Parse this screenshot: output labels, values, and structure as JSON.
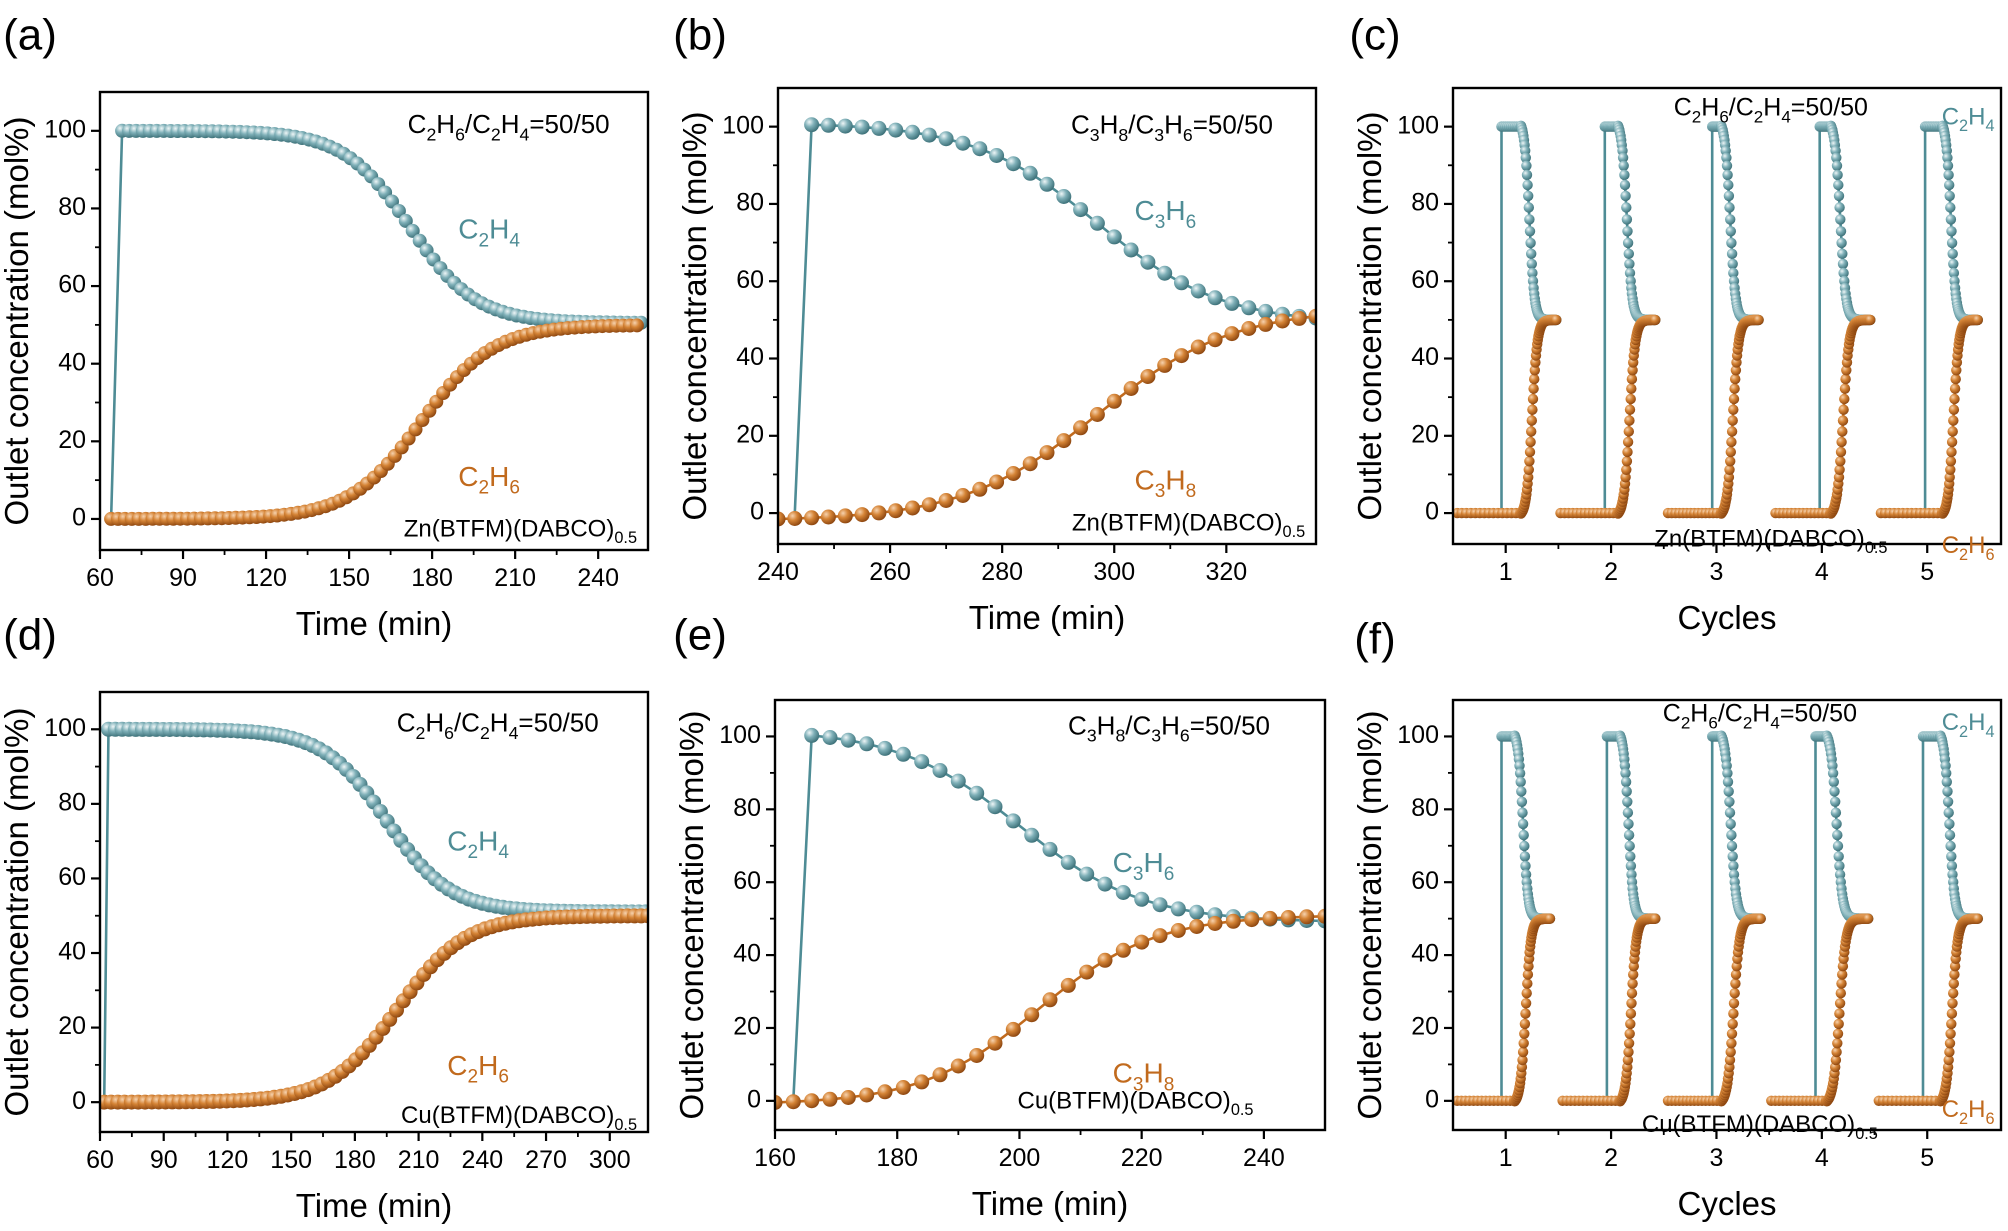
{
  "colors": {
    "c2h4": "#4e8c95",
    "c2h6": "#c16a1d",
    "axis": "#000000"
  },
  "panels": [
    {
      "id": "a",
      "label": "(a)",
      "ylabel": "Outlet concentration (mol%)",
      "xlabel": "Time (min)",
      "xticks": [
        60,
        90,
        120,
        150,
        180,
        210,
        240
      ],
      "yticks": [
        0,
        20,
        40,
        60,
        80,
        100
      ],
      "feed": "C2H6/C2H4=50/50",
      "sample": "Zn(BTFM)(DABCO)0.5",
      "series_labels": {
        "top": "C2H4",
        "bottom": "C2H6"
      }
    },
    {
      "id": "b",
      "label": "(b)",
      "ylabel": "Outlet concentration (mol%)",
      "xlabel": "Time (min)",
      "xticks": [
        240,
        260,
        280,
        300,
        320
      ],
      "yticks": [
        0,
        20,
        40,
        60,
        80,
        100
      ],
      "feed": "C3H8/C3H6=50/50",
      "sample": "Zn(BTFM)(DABCO)0.5",
      "series_labels": {
        "top": "C3H6",
        "bottom": "C3H8"
      }
    },
    {
      "id": "c",
      "label": "(c)",
      "ylabel": "Outlet concentration (mol%)",
      "xlabel": "Cycles",
      "xticks": [
        1,
        2,
        3,
        4,
        5
      ],
      "yticks": [
        0,
        20,
        40,
        60,
        80,
        100
      ],
      "feed": "C2H6/C2H4=50/50",
      "sample": "Zn(BTFM)(DABCO)0.5",
      "series_labels": {
        "top": "C2H4",
        "bottom": "C2H6"
      }
    },
    {
      "id": "d",
      "label": "(d)",
      "ylabel": "Outlet concentration (mol%)",
      "xlabel": "Time (min)",
      "xticks": [
        60,
        90,
        120,
        150,
        180,
        210,
        240,
        270,
        300
      ],
      "yticks": [
        0,
        20,
        40,
        60,
        80,
        100
      ],
      "feed": "C2H6/C2H4=50/50",
      "sample": "Cu(BTFM)(DABCO)0.5",
      "series_labels": {
        "top": "C2H4",
        "bottom": "C2H6"
      }
    },
    {
      "id": "e",
      "label": "(e)",
      "ylabel": "Outlet concentration (mol%)",
      "xlabel": "Time (min)",
      "xticks": [
        160,
        180,
        200,
        220,
        240
      ],
      "yticks": [
        0,
        20,
        40,
        60,
        80,
        100
      ],
      "feed": "C3H8/C3H6=50/50",
      "sample": "Cu(BTFM)(DABCO)0.5",
      "series_labels": {
        "top": "C3H6",
        "bottom": "C3H8"
      }
    },
    {
      "id": "f",
      "label": "(f)",
      "ylabel": "Outlet concentration (mol%)",
      "xlabel": "Cycles",
      "xticks": [
        1,
        2,
        3,
        4,
        5
      ],
      "yticks": [
        0,
        20,
        40,
        60,
        80,
        100
      ],
      "feed": "C2H6/C2H4=50/50",
      "sample": "Cu(BTFM)(DABCO)0.5",
      "series_labels": {
        "top": "C2H4",
        "bottom": "C2H6"
      }
    }
  ],
  "chart_data": [
    {
      "panel": "a",
      "type": "line",
      "marker": "sphere",
      "xlim": [
        60,
        258
      ],
      "ylim": [
        -8,
        110
      ],
      "series": [
        {
          "name": "C2H4",
          "sigmoid": {
            "x_start": 64,
            "x_rise": 68,
            "x_mid": 172,
            "width": 12,
            "high": 100,
            "low": 50.5,
            "step": 2.5,
            "x_end": 256
          }
        },
        {
          "name": "C2H6",
          "sigmoid": {
            "x_start": 64,
            "x_mid": 176,
            "width": 13,
            "low": 0,
            "high": 50,
            "step": 2.5,
            "x_end": 256
          }
        }
      ]
    },
    {
      "panel": "b",
      "type": "line",
      "marker": "sphere",
      "xlim": [
        240,
        336
      ],
      "ylim": [
        -8,
        110
      ],
      "series": [
        {
          "name": "C3H6",
          "sigmoid": {
            "x_start": 243,
            "x_rise": 246,
            "x_mid": 297,
            "width": 11,
            "high": 101,
            "low": 49,
            "step": 3,
            "x_end": 336
          }
        },
        {
          "name": "C3H8",
          "sigmoid": {
            "x_start": 240,
            "x_mid": 297,
            "width": 12,
            "low": -2,
            "high": 53,
            "step": 3,
            "x_end": 336
          }
        }
      ]
    },
    {
      "panel": "c",
      "type": "line",
      "marker": "sphere",
      "xlim": [
        0.5,
        5.7
      ],
      "ylim": [
        -8,
        110
      ],
      "cycles": [
        {
          "cycle": 1,
          "x_rise": 0.96,
          "plateau_end": 1.14,
          "x_end": 1.48
        },
        {
          "cycle": 2,
          "x_rise": 1.94,
          "plateau_end": 2.06,
          "x_end": 2.42
        },
        {
          "cycle": 3,
          "x_rise": 2.96,
          "plateau_end": 3.04,
          "x_end": 3.4
        },
        {
          "cycle": 4,
          "x_rise": 3.98,
          "plateau_end": 4.08,
          "x_end": 4.46
        },
        {
          "cycle": 5,
          "x_rise": 4.98,
          "plateau_end": 5.14,
          "x_end": 5.48
        }
      ],
      "series": [
        {
          "name": "C2H4",
          "high": 100,
          "low": 50
        },
        {
          "name": "C2H6",
          "high": 50,
          "low": 0
        }
      ]
    },
    {
      "panel": "d",
      "type": "line",
      "marker": "sphere",
      "xlim": [
        60,
        318
      ],
      "ylim": [
        -8,
        110
      ],
      "series": [
        {
          "name": "C2H4",
          "sigmoid": {
            "x_start": 62,
            "x_rise": 64,
            "x_mid": 195,
            "width": 15,
            "high": 100,
            "low": 51,
            "step": 3.2,
            "x_end": 318
          }
        },
        {
          "name": "C2H6",
          "sigmoid": {
            "x_start": 62,
            "x_mid": 200,
            "width": 16,
            "low": 0,
            "high": 50,
            "step": 3.2,
            "x_end": 318
          }
        }
      ]
    },
    {
      "panel": "e",
      "type": "line",
      "marker": "sphere",
      "xlim": [
        160,
        250
      ],
      "ylim": [
        -8,
        110
      ],
      "series": [
        {
          "name": "C3H6",
          "sigmoid": {
            "x_start": 163,
            "x_rise": 166,
            "x_mid": 200,
            "width": 10,
            "high": 102,
            "low": 49,
            "step": 3,
            "x_end": 250
          }
        },
        {
          "name": "C3H8",
          "sigmoid": {
            "x_start": 160,
            "x_mid": 203,
            "width": 9.5,
            "low": -1,
            "high": 51,
            "step": 3,
            "x_end": 250
          }
        }
      ]
    },
    {
      "panel": "f",
      "type": "line",
      "marker": "sphere",
      "xlim": [
        0.5,
        5.7
      ],
      "ylim": [
        -8,
        110
      ],
      "cycles": [
        {
          "cycle": 1,
          "x_rise": 0.96,
          "plateau_end": 1.08,
          "x_end": 1.42
        },
        {
          "cycle": 2,
          "x_rise": 1.96,
          "plateau_end": 2.08,
          "x_end": 2.42
        },
        {
          "cycle": 3,
          "x_rise": 2.96,
          "plateau_end": 3.04,
          "x_end": 3.42
        },
        {
          "cycle": 4,
          "x_rise": 3.94,
          "plateau_end": 4.04,
          "x_end": 4.44
        },
        {
          "cycle": 5,
          "x_rise": 4.96,
          "plateau_end": 5.12,
          "x_end": 5.48
        }
      ],
      "series": [
        {
          "name": "C2H4",
          "high": 100,
          "low": 50
        },
        {
          "name": "C2H6",
          "high": 50,
          "low": 0
        }
      ]
    }
  ]
}
